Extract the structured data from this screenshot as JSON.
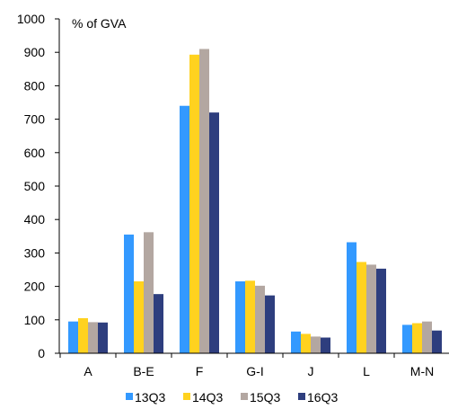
{
  "chart_data": {
    "type": "bar",
    "ylabel": "% of GVA",
    "ylim": [
      0,
      1000
    ],
    "yticks": [
      0,
      100,
      200,
      300,
      400,
      500,
      600,
      700,
      800,
      900,
      1000
    ],
    "categories": [
      "A",
      "B-E",
      "F",
      "G-I",
      "J",
      "L",
      "M-N"
    ],
    "series": [
      {
        "name": "13Q3",
        "color": "#3399ff",
        "values": [
          95,
          355,
          740,
          215,
          65,
          332,
          85
        ]
      },
      {
        "name": "14Q3",
        "color": "#ffd21f",
        "values": [
          105,
          215,
          893,
          217,
          58,
          273,
          90
        ]
      },
      {
        "name": "15Q3",
        "color": "#b3a7a1",
        "values": [
          93,
          362,
          910,
          202,
          50,
          265,
          95
        ]
      },
      {
        "name": "16Q3",
        "color": "#2e3e7e",
        "values": [
          92,
          177,
          720,
          173,
          47,
          253,
          68
        ]
      }
    ],
    "grid": false,
    "legend": "bottom"
  }
}
